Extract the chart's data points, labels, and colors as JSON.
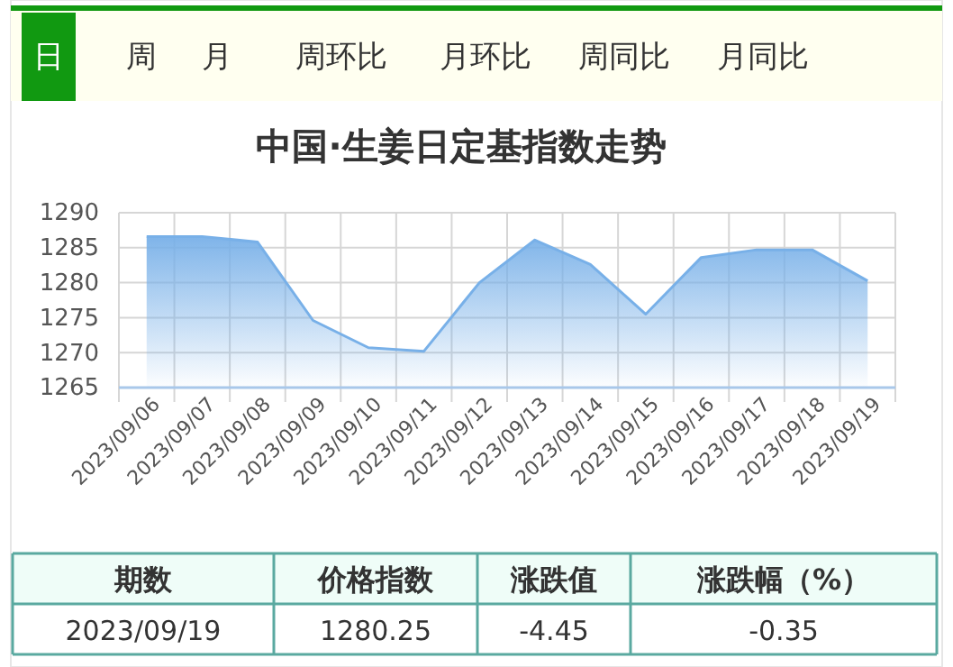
{
  "chart_data": {
    "type": "area",
    "title": "中国·生姜日定基指数走势",
    "categories": [
      "2023/09/06",
      "2023/09/07",
      "2023/09/08",
      "2023/09/09",
      "2023/09/10",
      "2023/09/11",
      "2023/09/12",
      "2023/09/13",
      "2023/09/14",
      "2023/09/15",
      "2023/09/16",
      "2023/09/17",
      "2023/09/18",
      "2023/09/19"
    ],
    "series": [
      {
        "color": "#78b0e8",
        "values": [
          1286.6,
          1286.6,
          1285.8,
          1274.6,
          1270.7,
          1270.2,
          1280.0,
          1286.1,
          1282.6,
          1275.5,
          1283.6,
          1284.7,
          1284.7,
          1280.25
        ]
      }
    ],
    "ylim": [
      1265,
      1290
    ],
    "yticks": [
      1265,
      1270,
      1275,
      1280,
      1285,
      1290
    ],
    "grid": true,
    "annotations": [
      "日",
      "周",
      "月",
      "周环比",
      "月环比",
      "周同比",
      "月同比",
      "期数",
      "价格指数",
      "涨跌值",
      "涨跌幅（%）",
      "2023/09/19",
      "1280.25",
      "-4.45",
      "-0.35"
    ]
  }
}
